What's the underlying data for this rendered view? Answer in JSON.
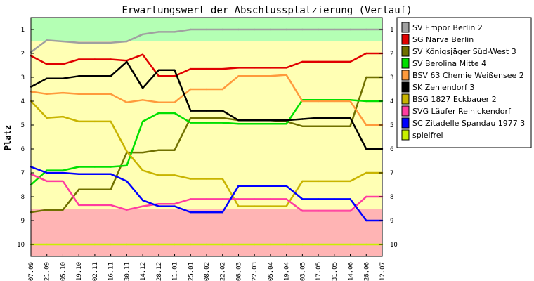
{
  "chart_data": {
    "type": "line",
    "title": "Erwartungswert der Abschlussplatzierung (Verlauf)",
    "ylabel": "Platz",
    "xlabel": "",
    "ylim": [
      10.5,
      0.5
    ],
    "y_reversed": true,
    "yticks": [
      1,
      2,
      3,
      4,
      5,
      6,
      7,
      8,
      9,
      10
    ],
    "categories": [
      "07.09",
      "21.09",
      "05.10",
      "19.10",
      "02.11",
      "16.11",
      "30.11",
      "14.12",
      "28.12",
      "11.01",
      "25.01",
      "08.02",
      "22.02",
      "08.03",
      "22.03",
      "05.04",
      "19.04",
      "03.05",
      "17.05",
      "31.05",
      "14.06",
      "28.06",
      "12.07"
    ],
    "bands": [
      {
        "from": 0.5,
        "to": 1.5,
        "color": "#b4ffb4"
      },
      {
        "from": 1.5,
        "to": 8.5,
        "color": "#ffffb4"
      },
      {
        "from": 8.5,
        "to": 10.5,
        "color": "#ffb4b4"
      }
    ],
    "series": [
      {
        "name": "SV Empor Berlin 2",
        "color": "#a0a0a0",
        "values": [
          1.95,
          1.45,
          1.5,
          1.55,
          1.55,
          1.55,
          1.5,
          1.2,
          1.1,
          1.1,
          1.0,
          1.0,
          1.0,
          1.0,
          1.0,
          1.0,
          1.0,
          1.0,
          1.0,
          1.0,
          1.0,
          1.0,
          1.0
        ]
      },
      {
        "name": "SG Narva Berlin",
        "color": "#e00000",
        "values": [
          2.1,
          2.45,
          2.45,
          2.25,
          2.25,
          2.25,
          2.3,
          2.05,
          2.95,
          2.95,
          2.65,
          2.65,
          2.65,
          2.6,
          2.6,
          2.6,
          2.6,
          2.35,
          2.35,
          2.35,
          2.35,
          2.0,
          2.0
        ]
      },
      {
        "name": "SV Königsjäger Süd-West 3",
        "color": "#707000",
        "values": [
          8.65,
          8.55,
          8.55,
          7.7,
          7.7,
          7.7,
          6.15,
          6.15,
          6.05,
          6.05,
          4.7,
          4.7,
          4.7,
          4.8,
          4.8,
          4.8,
          4.85,
          5.05,
          5.05,
          5.05,
          5.05,
          3.0,
          3.0
        ]
      },
      {
        "name": "SV Berolina Mitte 4",
        "color": "#00e000",
        "values": [
          7.5,
          6.9,
          6.9,
          6.75,
          6.75,
          6.75,
          6.7,
          4.85,
          4.5,
          4.5,
          4.9,
          4.9,
          4.9,
          4.95,
          4.95,
          4.95,
          4.95,
          3.95,
          3.95,
          3.95,
          3.95,
          4.0,
          4.0
        ]
      },
      {
        "name": "BSV 63 Chemie Weißensee 2",
        "color": "#ff9a3c",
        "values": [
          3.6,
          3.7,
          3.65,
          3.7,
          3.7,
          3.7,
          4.05,
          3.95,
          4.05,
          4.05,
          3.5,
          3.5,
          3.5,
          2.95,
          2.95,
          2.95,
          2.9,
          4.0,
          4.0,
          4.0,
          4.0,
          5.0,
          5.0
        ]
      },
      {
        "name": "SK Zehlendorf 3",
        "color": "#000000",
        "values": [
          3.4,
          3.05,
          3.05,
          2.95,
          2.95,
          2.95,
          2.35,
          3.45,
          2.7,
          2.7,
          4.4,
          4.4,
          4.4,
          4.8,
          4.8,
          4.8,
          4.8,
          4.75,
          4.7,
          4.7,
          4.7,
          6.0,
          6.0
        ]
      },
      {
        "name": "BSG 1827 Eckbauer 2",
        "color": "#c8b400",
        "values": [
          4.0,
          4.7,
          4.65,
          4.85,
          4.85,
          4.85,
          6.1,
          6.9,
          7.1,
          7.1,
          7.25,
          7.25,
          7.25,
          8.4,
          8.4,
          8.4,
          8.4,
          7.35,
          7.35,
          7.35,
          7.35,
          7.0,
          7.0
        ]
      },
      {
        "name": "SVG Läufer Reinickendorf",
        "color": "#ff3ca0",
        "values": [
          7.05,
          7.35,
          7.35,
          8.35,
          8.35,
          8.35,
          8.55,
          8.4,
          8.3,
          8.3,
          8.1,
          8.1,
          8.1,
          8.1,
          8.1,
          8.1,
          8.1,
          8.6,
          8.6,
          8.6,
          8.6,
          8.0,
          8.0
        ]
      },
      {
        "name": "SC Zitadelle Spandau 1977 3",
        "color": "#0000ff",
        "values": [
          6.75,
          7.0,
          7.0,
          7.05,
          7.05,
          7.05,
          7.35,
          8.15,
          8.4,
          8.4,
          8.65,
          8.65,
          8.65,
          7.55,
          7.55,
          7.55,
          7.55,
          8.1,
          8.1,
          8.1,
          8.1,
          9.0,
          9.0
        ]
      },
      {
        "name": "spielfrei",
        "color": "#c8f000",
        "values": [
          10.0,
          10.0,
          10.0,
          10.0,
          10.0,
          10.0,
          10.0,
          10.0,
          10.0,
          10.0,
          10.0,
          10.0,
          10.0,
          10.0,
          10.0,
          10.0,
          10.0,
          10.0,
          10.0,
          10.0,
          10.0,
          10.0,
          10.0
        ]
      }
    ]
  }
}
